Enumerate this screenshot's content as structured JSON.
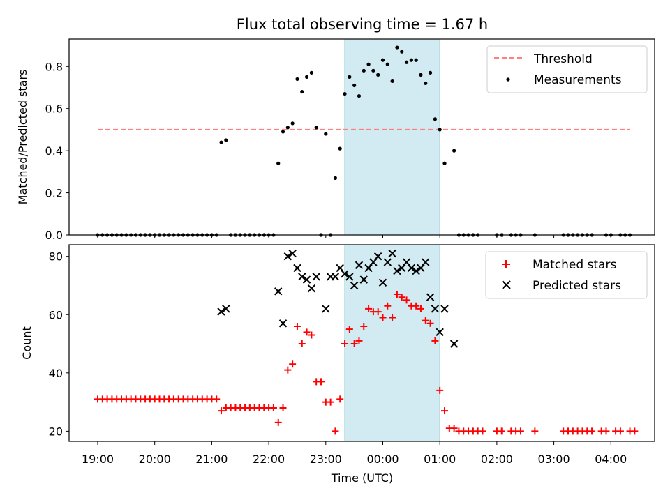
{
  "colors": {
    "threshold": "#ff7f7f",
    "measurement": "#000000",
    "matched": "#ff0000",
    "predicted": "#000000",
    "highlight": "#add8e6"
  },
  "chart_data": [
    {
      "type": "scatter",
      "title": "Flux total observing time = 1.67 h",
      "ylabel": "Matched/Predicted stars",
      "ylim": [
        0,
        0.93
      ],
      "yticks": [
        0.0,
        0.2,
        0.4,
        0.6,
        0.8
      ],
      "ytick_labels": [
        "0.0",
        "0.2",
        "0.4",
        "0.6",
        "0.8"
      ],
      "x_unit": "hours (UTC, past 19:00 on day 1)",
      "highlight_span": [
        "23:20",
        "01:00"
      ],
      "legend_position": "top-right",
      "threshold": {
        "name": "Threshold",
        "value": 0.5,
        "x_range": [
          "19:00",
          "04:20"
        ]
      },
      "series": [
        {
          "name": "Measurements",
          "marker": "dot",
          "points": [
            [
              "19:00",
              0
            ],
            [
              "19:05",
              0
            ],
            [
              "19:10",
              0
            ],
            [
              "19:15",
              0
            ],
            [
              "19:20",
              0
            ],
            [
              "19:25",
              0
            ],
            [
              "19:30",
              0
            ],
            [
              "19:35",
              0
            ],
            [
              "19:40",
              0
            ],
            [
              "19:45",
              0
            ],
            [
              "19:50",
              0
            ],
            [
              "19:55",
              0
            ],
            [
              "20:00",
              0
            ],
            [
              "20:05",
              0
            ],
            [
              "20:10",
              0
            ],
            [
              "20:15",
              0
            ],
            [
              "20:20",
              0
            ],
            [
              "20:25",
              0
            ],
            [
              "20:30",
              0
            ],
            [
              "20:35",
              0
            ],
            [
              "20:40",
              0
            ],
            [
              "20:45",
              0
            ],
            [
              "20:50",
              0
            ],
            [
              "20:55",
              0
            ],
            [
              "21:00",
              0
            ],
            [
              "21:05",
              0
            ],
            [
              "21:10",
              0.44
            ],
            [
              "21:15",
              0.45
            ],
            [
              "21:20",
              0
            ],
            [
              "21:25",
              0
            ],
            [
              "21:30",
              0
            ],
            [
              "21:35",
              0
            ],
            [
              "21:40",
              0
            ],
            [
              "21:45",
              0
            ],
            [
              "21:50",
              0
            ],
            [
              "21:55",
              0
            ],
            [
              "22:00",
              0
            ],
            [
              "22:05",
              0
            ],
            [
              "22:10",
              0.34
            ],
            [
              "22:15",
              0.49
            ],
            [
              "22:20",
              0.51
            ],
            [
              "22:25",
              0.53
            ],
            [
              "22:30",
              0.74
            ],
            [
              "22:35",
              0.68
            ],
            [
              "22:40",
              0.75
            ],
            [
              "22:45",
              0.77
            ],
            [
              "22:50",
              0.51
            ],
            [
              "22:55",
              0
            ],
            [
              "23:00",
              0.48
            ],
            [
              "23:05",
              0
            ],
            [
              "23:10",
              0.27
            ],
            [
              "23:15",
              0.41
            ],
            [
              "23:20",
              0.67
            ],
            [
              "23:25",
              0.75
            ],
            [
              "23:30",
              0.71
            ],
            [
              "23:35",
              0.66
            ],
            [
              "23:40",
              0.78
            ],
            [
              "23:45",
              0.81
            ],
            [
              "23:50",
              0.78
            ],
            [
              "23:55",
              0.76
            ],
            [
              "00:00",
              0.83
            ],
            [
              "00:05",
              0.81
            ],
            [
              "00:10",
              0.73
            ],
            [
              "00:15",
              0.89
            ],
            [
              "00:20",
              0.87
            ],
            [
              "00:25",
              0.82
            ],
            [
              "00:30",
              0.83
            ],
            [
              "00:35",
              0.83
            ],
            [
              "00:40",
              0.76
            ],
            [
              "00:45",
              0.72
            ],
            [
              "00:50",
              0.77
            ],
            [
              "00:55",
              0.55
            ],
            [
              "01:00",
              0.5
            ],
            [
              "01:05",
              0.34
            ],
            [
              "01:15",
              0.4
            ],
            [
              "01:20",
              0
            ],
            [
              "01:25",
              0
            ],
            [
              "01:30",
              0
            ],
            [
              "01:35",
              0
            ],
            [
              "01:40",
              0
            ],
            [
              "02:00",
              0
            ],
            [
              "02:05",
              0
            ],
            [
              "02:15",
              0
            ],
            [
              "02:20",
              0
            ],
            [
              "02:25",
              0
            ],
            [
              "02:40",
              0
            ],
            [
              "03:10",
              0
            ],
            [
              "03:15",
              0
            ],
            [
              "03:20",
              0
            ],
            [
              "03:25",
              0
            ],
            [
              "03:30",
              0
            ],
            [
              "03:35",
              0
            ],
            [
              "03:40",
              0
            ],
            [
              "03:55",
              0
            ],
            [
              "04:00",
              0
            ],
            [
              "04:10",
              0
            ],
            [
              "04:15",
              0
            ],
            [
              "04:20",
              0
            ]
          ]
        }
      ]
    },
    {
      "type": "scatter",
      "xlabel": "Time (UTC)",
      "ylabel": "Count",
      "ylim": [
        16.5,
        84
      ],
      "yticks": [
        20,
        40,
        60,
        80
      ],
      "ytick_labels": [
        "20",
        "40",
        "60",
        "80"
      ],
      "xticks": [
        "19:00",
        "20:00",
        "21:00",
        "22:00",
        "23:00",
        "00:00",
        "01:00",
        "02:00",
        "03:00",
        "04:00"
      ],
      "highlight_span": [
        "23:20",
        "01:00"
      ],
      "legend_position": "top-right",
      "series": [
        {
          "name": "Matched stars",
          "marker": "plus",
          "points": [
            [
              "19:00",
              31
            ],
            [
              "19:05",
              31
            ],
            [
              "19:10",
              31
            ],
            [
              "19:15",
              31
            ],
            [
              "19:20",
              31
            ],
            [
              "19:25",
              31
            ],
            [
              "19:30",
              31
            ],
            [
              "19:35",
              31
            ],
            [
              "19:40",
              31
            ],
            [
              "19:45",
              31
            ],
            [
              "19:50",
              31
            ],
            [
              "19:55",
              31
            ],
            [
              "20:00",
              31
            ],
            [
              "20:05",
              31
            ],
            [
              "20:10",
              31
            ],
            [
              "20:15",
              31
            ],
            [
              "20:20",
              31
            ],
            [
              "20:25",
              31
            ],
            [
              "20:30",
              31
            ],
            [
              "20:35",
              31
            ],
            [
              "20:40",
              31
            ],
            [
              "20:45",
              31
            ],
            [
              "20:50",
              31
            ],
            [
              "20:55",
              31
            ],
            [
              "21:00",
              31
            ],
            [
              "21:05",
              31
            ],
            [
              "21:10",
              27
            ],
            [
              "21:15",
              28
            ],
            [
              "21:20",
              28
            ],
            [
              "21:25",
              28
            ],
            [
              "21:30",
              28
            ],
            [
              "21:35",
              28
            ],
            [
              "21:40",
              28
            ],
            [
              "21:45",
              28
            ],
            [
              "21:50",
              28
            ],
            [
              "21:55",
              28
            ],
            [
              "22:00",
              28
            ],
            [
              "22:05",
              28
            ],
            [
              "22:10",
              23
            ],
            [
              "22:15",
              28
            ],
            [
              "22:20",
              41
            ],
            [
              "22:25",
              43
            ],
            [
              "22:30",
              56
            ],
            [
              "22:35",
              50
            ],
            [
              "22:40",
              54
            ],
            [
              "22:45",
              53
            ],
            [
              "22:50",
              37
            ],
            [
              "22:55",
              37
            ],
            [
              "23:00",
              30
            ],
            [
              "23:05",
              30
            ],
            [
              "23:10",
              20
            ],
            [
              "23:15",
              31
            ],
            [
              "23:20",
              50
            ],
            [
              "23:25",
              55
            ],
            [
              "23:30",
              50
            ],
            [
              "23:35",
              51
            ],
            [
              "23:40",
              56
            ],
            [
              "23:45",
              62
            ],
            [
              "23:50",
              61
            ],
            [
              "23:55",
              61
            ],
            [
              "00:00",
              59
            ],
            [
              "00:05",
              63
            ],
            [
              "00:10",
              59
            ],
            [
              "00:15",
              67
            ],
            [
              "00:20",
              66
            ],
            [
              "00:25",
              65
            ],
            [
              "00:30",
              63
            ],
            [
              "00:35",
              63
            ],
            [
              "00:40",
              62
            ],
            [
              "00:45",
              58
            ],
            [
              "00:50",
              57
            ],
            [
              "00:55",
              51
            ],
            [
              "01:00",
              34
            ],
            [
              "01:05",
              27
            ],
            [
              "01:10",
              21
            ],
            [
              "01:15",
              21
            ],
            [
              "01:20",
              20
            ],
            [
              "01:25",
              20
            ],
            [
              "01:30",
              20
            ],
            [
              "01:35",
              20
            ],
            [
              "01:40",
              20
            ],
            [
              "01:45",
              20
            ],
            [
              "02:00",
              20
            ],
            [
              "02:05",
              20
            ],
            [
              "02:15",
              20
            ],
            [
              "02:20",
              20
            ],
            [
              "02:25",
              20
            ],
            [
              "02:40",
              20
            ],
            [
              "03:10",
              20
            ],
            [
              "03:15",
              20
            ],
            [
              "03:20",
              20
            ],
            [
              "03:25",
              20
            ],
            [
              "03:30",
              20
            ],
            [
              "03:35",
              20
            ],
            [
              "03:40",
              20
            ],
            [
              "03:50",
              20
            ],
            [
              "03:55",
              20
            ],
            [
              "04:05",
              20
            ],
            [
              "04:10",
              20
            ],
            [
              "04:20",
              20
            ],
            [
              "04:25",
              20
            ]
          ]
        },
        {
          "name": "Predicted stars",
          "marker": "x",
          "points": [
            [
              "21:10",
              61
            ],
            [
              "21:15",
              62
            ],
            [
              "22:10",
              68
            ],
            [
              "22:15",
              57
            ],
            [
              "22:20",
              80
            ],
            [
              "22:25",
              81
            ],
            [
              "22:30",
              76
            ],
            [
              "22:35",
              73
            ],
            [
              "22:40",
              72
            ],
            [
              "22:45",
              69
            ],
            [
              "22:50",
              73
            ],
            [
              "23:00",
              62
            ],
            [
              "23:05",
              73
            ],
            [
              "23:10",
              73
            ],
            [
              "23:15",
              76
            ],
            [
              "23:20",
              74
            ],
            [
              "23:25",
              73
            ],
            [
              "23:30",
              70
            ],
            [
              "23:35",
              77
            ],
            [
              "23:40",
              72
            ],
            [
              "23:45",
              76
            ],
            [
              "23:50",
              78
            ],
            [
              "23:55",
              80
            ],
            [
              "00:00",
              71
            ],
            [
              "00:05",
              78
            ],
            [
              "00:10",
              81
            ],
            [
              "00:15",
              75
            ],
            [
              "00:20",
              76
            ],
            [
              "00:25",
              78
            ],
            [
              "00:30",
              76
            ],
            [
              "00:35",
              75
            ],
            [
              "00:40",
              76
            ],
            [
              "00:45",
              78
            ],
            [
              "00:50",
              66
            ],
            [
              "00:55",
              62
            ],
            [
              "01:00",
              54
            ],
            [
              "01:05",
              62
            ],
            [
              "01:15",
              50
            ]
          ]
        }
      ]
    }
  ]
}
